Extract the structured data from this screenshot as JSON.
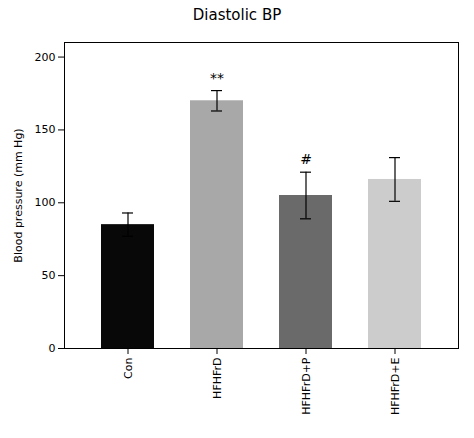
{
  "chart_data": {
    "type": "bar",
    "title": "Diastolic BP",
    "ylabel": "Blood pressure (mm Hg)",
    "categories": [
      "Con",
      "HFHFrD",
      "HFHFrD+P",
      "HFHFrD+E"
    ],
    "values": [
      85,
      170,
      105,
      116
    ],
    "errors": [
      8,
      7,
      16,
      15
    ],
    "colors": [
      "#080808",
      "#a8a8a8",
      "#6a6a6a",
      "#cccccc"
    ],
    "ylim": [
      0,
      210
    ],
    "yticks": [
      0,
      50,
      100,
      150,
      200
    ],
    "annotations": [
      {
        "category": "HFHFrD",
        "text": "**"
      },
      {
        "category": "HFHFrD+P",
        "text": "#"
      }
    ],
    "grid": false
  }
}
